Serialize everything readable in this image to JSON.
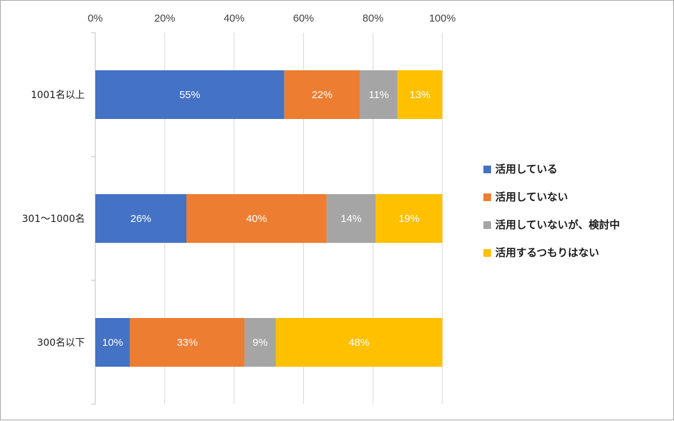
{
  "chart_data": {
    "type": "bar",
    "orientation": "horizontal",
    "stacked": "percent",
    "title": "",
    "xlabel": "",
    "ylabel": "",
    "xlim": [
      0,
      100
    ],
    "x_ticks": [
      "0%",
      "20%",
      "40%",
      "60%",
      "80%",
      "100%"
    ],
    "grid": true,
    "legend_position": "right",
    "categories": [
      "1001名以上",
      "301～1000名",
      "300名以下"
    ],
    "series": [
      {
        "name": "活用している",
        "color": "#4472C4",
        "values": [
          55,
          26,
          10
        ]
      },
      {
        "name": "活用していない",
        "color": "#ED7D31",
        "values": [
          22,
          40,
          33
        ]
      },
      {
        "name": "活用していないが、検討中",
        "color": "#A5A5A5",
        "values": [
          11,
          14,
          9
        ]
      },
      {
        "name": "活用するつもりはない",
        "color": "#FFC000",
        "values": [
          13,
          19,
          48
        ]
      }
    ]
  }
}
